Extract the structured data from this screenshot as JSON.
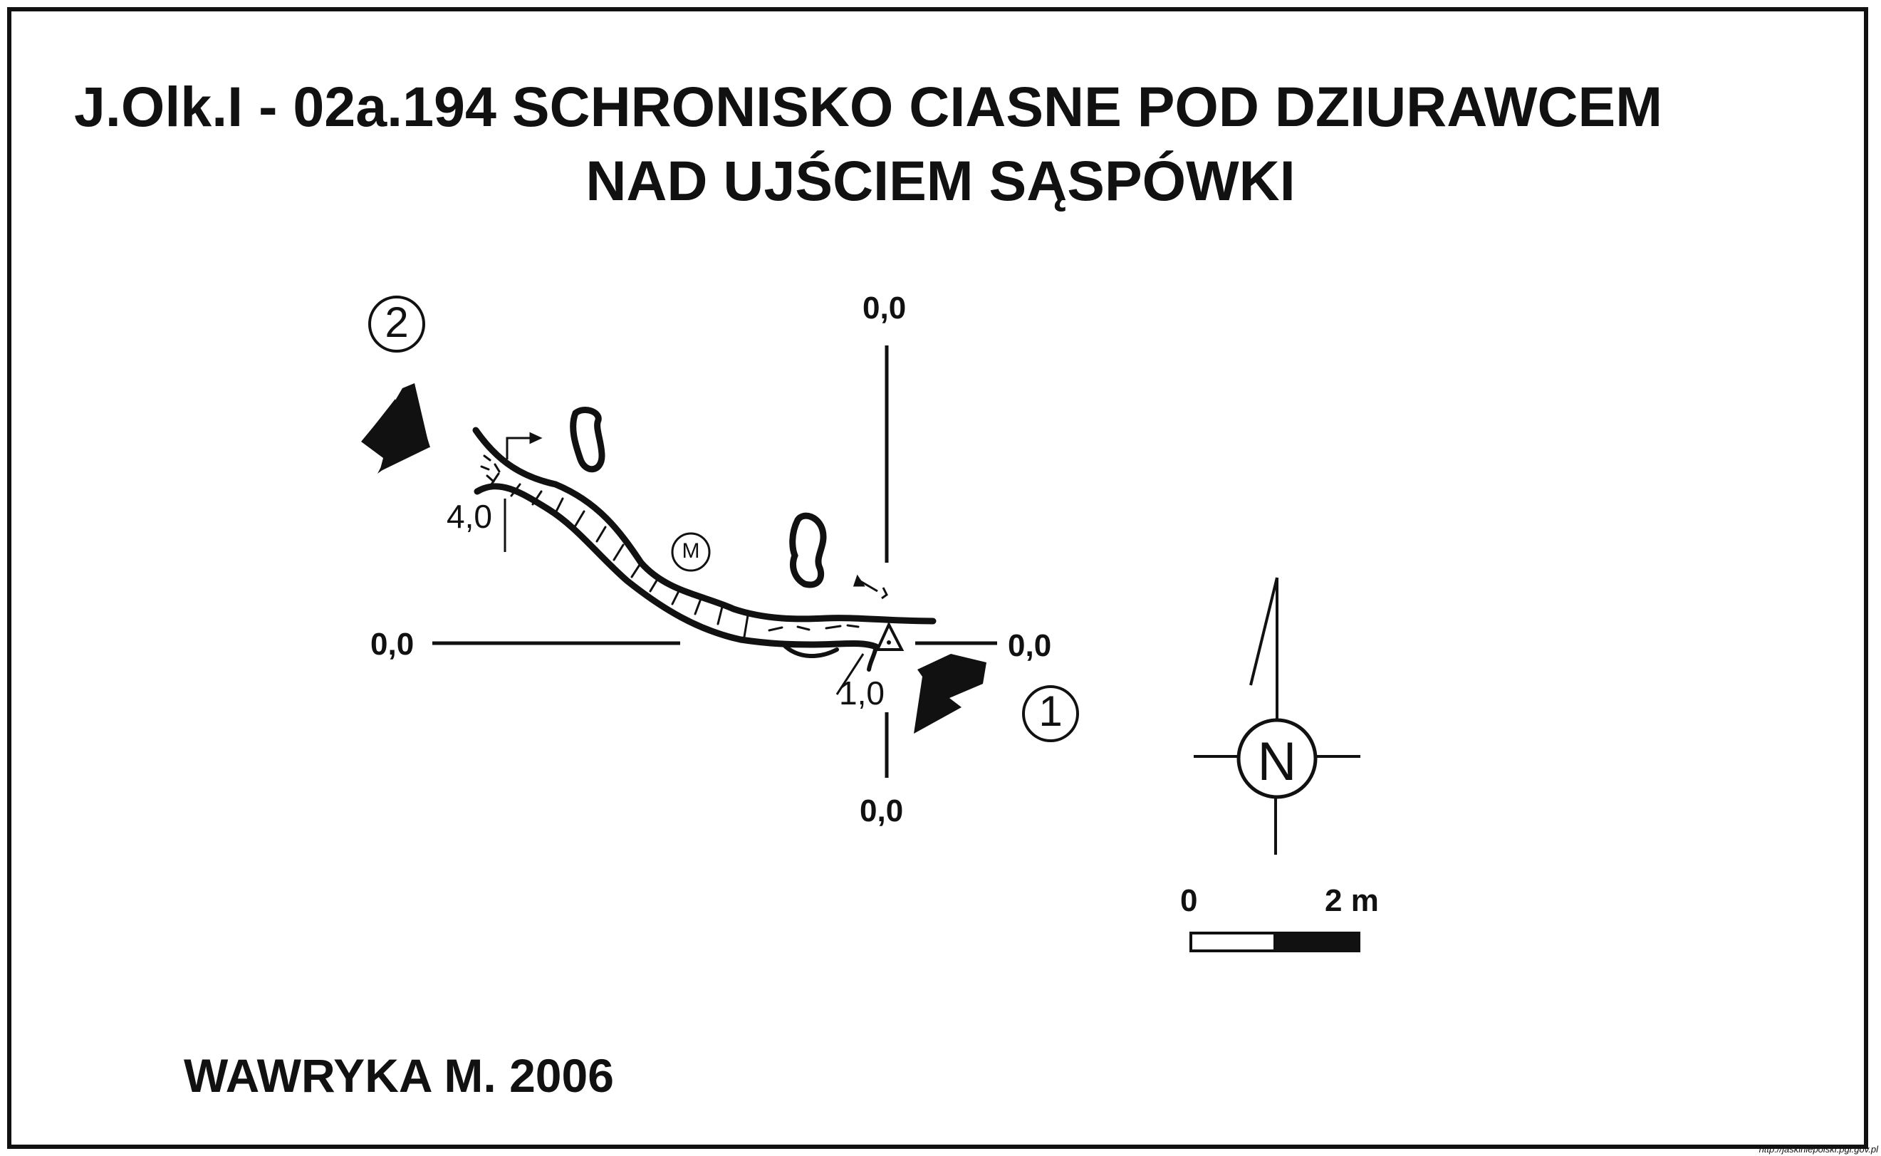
{
  "title_line1": "J.Olk.I - 02a.194  SCHRONISKO CIASNE POD DZIURAWCEM",
  "title_line2": "NAD UJŚCIEM SĄSPÓWKI",
  "author": "WAWRYKA M. 2006",
  "coords": {
    "top": "0,0",
    "bottom": "0,0",
    "left": "0,0",
    "right": "0,0"
  },
  "depths": {
    "entrance_west": "4,0",
    "entrance_east": "1,0"
  },
  "entrance_markers": {
    "east": "1",
    "west": "2"
  },
  "symbol_m": "M",
  "north_label": "N",
  "scale": {
    "start": "0",
    "end": "2 m"
  },
  "source_url": "http://jaskiniepolski.pgi.gov.pl",
  "colors": {
    "ink": "#111111",
    "background": "#ffffff"
  }
}
